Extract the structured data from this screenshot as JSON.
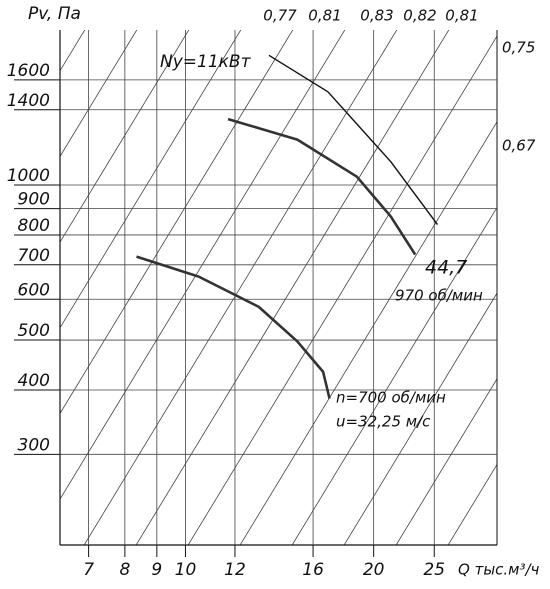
{
  "chart_data": {
    "type": "line",
    "y_label": "Pv, Па",
    "x_label": "Q тыс.м³/ч",
    "xscale": "log",
    "yscale": "log",
    "xlim": [
      6.3,
      31.5
    ],
    "ylim": [
      200,
      2000
    ],
    "xticks": [
      7,
      8,
      9,
      10,
      12,
      16,
      20,
      25
    ],
    "yticks": [
      300,
      400,
      500,
      600,
      700,
      800,
      900,
      1000,
      1400,
      1600
    ],
    "grid": true,
    "series": [
      {
        "color": "#111111",
        "x": [
          13.6,
          16.9,
          21.3,
          25.3
        ],
        "values": [
          1786,
          1517,
          1110,
          838
        ]
      },
      {
        "color": "#333333",
        "x": [
          11.7,
          15.1,
          18.8,
          21.3,
          23.3
        ],
        "values": [
          1343,
          1225,
          1038,
          869,
          733
        ]
      },
      {
        "color": "#333333",
        "x": [
          8.35,
          10.5,
          13.1,
          15.1,
          16.6,
          17.0
        ],
        "values": [
          726,
          664,
          580,
          497,
          434,
          385
        ]
      }
    ],
    "efficiency_labels": [
      "0,77",
      "0,81",
      "0,83",
      "0,82",
      "0,81",
      "0,75",
      "0,67"
    ],
    "annotations": [
      "Ny=11кВт",
      "44,7",
      "970 об/мин",
      "n=700 об/мин",
      "u=32,25 м/с"
    ]
  }
}
